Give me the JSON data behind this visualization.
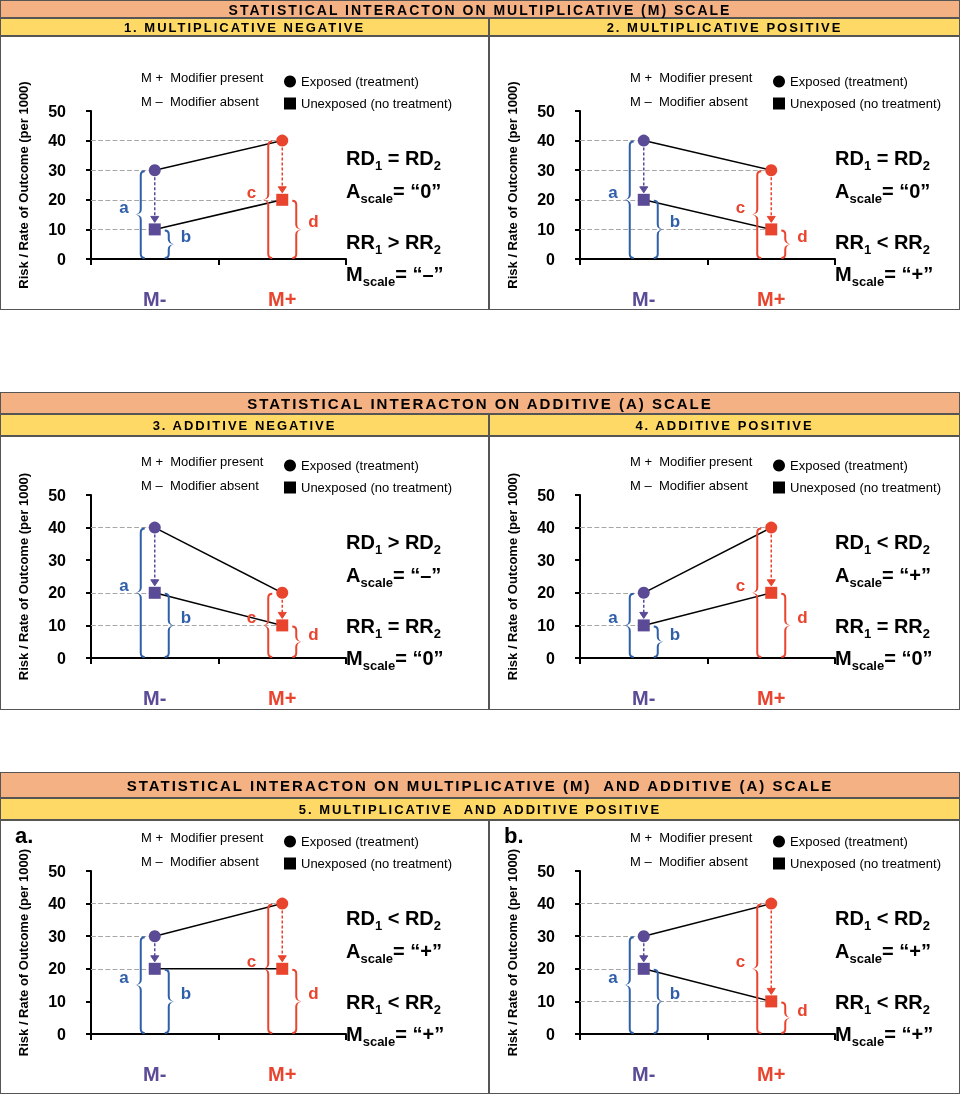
{
  "chart_data": [
    {
      "type": "line",
      "title": "1. MULTIPLICATIVE NEGATIVE",
      "ylabel": "Risk / Rate of Outcome (per 1000)",
      "categories": [
        "M-",
        "M+"
      ],
      "series": [
        {
          "name": "Exposed (treatment)",
          "color": "#000000",
          "colors": [
            "#5b4a96",
            "#e8442e"
          ],
          "marker": "circle",
          "values": [
            30,
            40
          ]
        },
        {
          "name": "Unexposed (no treatment)",
          "color": "#000000",
          "colors": [
            "#5b4a96",
            "#e8442e"
          ],
          "marker": "square",
          "values": [
            10,
            20
          ]
        }
      ],
      "ylim": [
        0,
        50
      ],
      "yticks": [
        0,
        10,
        20,
        30,
        40,
        50
      ],
      "grid": false,
      "legend": "top right",
      "line_style": "solid",
      "ref_lines": [
        {
          "axis": "y",
          "value": 40,
          "color": "#a6a6a6",
          "line_style": "dashed"
        },
        {
          "axis": "y",
          "value": 30,
          "color": "#a6a6a6",
          "line_style": "dashed"
        },
        {
          "axis": "y",
          "value": 20,
          "color": "#a6a6a6",
          "line_style": "dashed"
        },
        {
          "axis": "y",
          "value": 10,
          "color": "#a6a6a6",
          "line_style": "dashed"
        }
      ],
      "annotations": [
        "STATISTICAL INTERACTON ON MULTIPLICATIVE (M) SCALE",
        "M +  Modifier present",
        "M –  Modifier absent",
        "RD$_{1}$ = RD$_{2}$",
        "A$_{scale}$= “0”",
        "RR$_{1}$ > RR$_{2}$",
        "M$_{scale}$= “–”",
        "a",
        "b",
        "c",
        "d"
      ]
    },
    {
      "type": "line",
      "title": "2. MULTIPLICATIVE POSITIVE",
      "ylabel": "Risk / Rate of Outcome (per 1000)",
      "categories": [
        "M-",
        "M+"
      ],
      "series": [
        {
          "name": "Exposed (treatment)",
          "color": "#000000",
          "colors": [
            "#5b4a96",
            "#e8442e"
          ],
          "marker": "circle",
          "values": [
            40,
            30
          ]
        },
        {
          "name": "Unexposed (no treatment)",
          "color": "#000000",
          "colors": [
            "#5b4a96",
            "#e8442e"
          ],
          "marker": "square",
          "values": [
            20,
            10
          ]
        }
      ],
      "ylim": [
        0,
        50
      ],
      "yticks": [
        0,
        10,
        20,
        30,
        40,
        50
      ],
      "grid": false,
      "legend": "top right",
      "line_style": "solid",
      "ref_lines": [
        {
          "axis": "y",
          "value": 40,
          "color": "#a6a6a6",
          "line_style": "dashed"
        },
        {
          "axis": "y",
          "value": 30,
          "color": "#a6a6a6",
          "line_style": "dashed"
        },
        {
          "axis": "y",
          "value": 20,
          "color": "#a6a6a6",
          "line_style": "dashed"
        },
        {
          "axis": "y",
          "value": 10,
          "color": "#a6a6a6",
          "line_style": "dashed"
        }
      ],
      "annotations": [
        "M +  Modifier present",
        "M –  Modifier absent",
        "RD$_{1}$ = RD$_{2}$",
        "A$_{scale}$= “0”",
        "RR$_{1}$ < RR$_{2}$",
        "M$_{scale}$= “+”",
        "a",
        "b",
        "c",
        "d"
      ]
    },
    {
      "type": "line",
      "title": "3. ADDITIVE NEGATIVE",
      "ylabel": "Risk / Rate of Outcome (per 1000)",
      "categories": [
        "M-",
        "M+"
      ],
      "series": [
        {
          "name": "Exposed (treatment)",
          "color": "#000000",
          "colors": [
            "#5b4a96",
            "#e8442e"
          ],
          "marker": "circle",
          "values": [
            40,
            20
          ]
        },
        {
          "name": "Unexposed (no treatment)",
          "color": "#000000",
          "colors": [
            "#5b4a96",
            "#e8442e"
          ],
          "marker": "square",
          "values": [
            20,
            10
          ]
        }
      ],
      "ylim": [
        0,
        50
      ],
      "yticks": [
        0,
        10,
        20,
        30,
        40,
        50
      ],
      "grid": false,
      "legend": "top right",
      "line_style": "solid",
      "ref_lines": [
        {
          "axis": "y",
          "value": 40,
          "color": "#a6a6a6",
          "line_style": "dashed"
        },
        {
          "axis": "y",
          "value": 20,
          "color": "#a6a6a6",
          "line_style": "dashed"
        },
        {
          "axis": "y",
          "value": 10,
          "color": "#a6a6a6",
          "line_style": "dashed"
        }
      ],
      "annotations": [
        "STATISTICAL INTERACTON ON ADDITIVE (A) SCALE",
        "M +  Modifier present",
        "M –  Modifier absent",
        "RD$_{1}$ > RD$_{2}$",
        "A$_{scale}$= “–”",
        "RR$_{1}$ = RR$_{2}$",
        "M$_{scale}$= “0”",
        "a",
        "b",
        "c",
        "d"
      ]
    },
    {
      "type": "line",
      "title": "4. ADDITIVE POSITIVE",
      "ylabel": "Risk / Rate of Outcome (per 1000)",
      "categories": [
        "M-",
        "M+"
      ],
      "series": [
        {
          "name": "Exposed (treatment)",
          "color": "#000000",
          "colors": [
            "#5b4a96",
            "#e8442e"
          ],
          "marker": "circle",
          "values": [
            20,
            40
          ]
        },
        {
          "name": "Unexposed (no treatment)",
          "color": "#000000",
          "colors": [
            "#5b4a96",
            "#e8442e"
          ],
          "marker": "square",
          "values": [
            10,
            20
          ]
        }
      ],
      "ylim": [
        0,
        50
      ],
      "yticks": [
        0,
        10,
        20,
        30,
        40,
        50
      ],
      "grid": false,
      "legend": "top right",
      "line_style": "solid",
      "ref_lines": [
        {
          "axis": "y",
          "value": 40,
          "color": "#a6a6a6",
          "line_style": "dashed"
        },
        {
          "axis": "y",
          "value": 20,
          "color": "#a6a6a6",
          "line_style": "dashed"
        },
        {
          "axis": "y",
          "value": 10,
          "color": "#a6a6a6",
          "line_style": "dashed"
        }
      ],
      "annotations": [
        "M +  Modifier present",
        "M –  Modifier absent",
        "RD$_{1}$ < RD$_{2}$",
        "A$_{scale}$= “+”",
        "RR$_{1}$ = RR$_{2}$",
        "M$_{scale}$= “0”",
        "a",
        "b",
        "c",
        "d"
      ]
    },
    {
      "type": "line",
      "title": "a.",
      "ylabel": "Risk / Rate of Outcome (per 1000)",
      "categories": [
        "M-",
        "M+"
      ],
      "series": [
        {
          "name": "Exposed (treatment)",
          "color": "#000000",
          "colors": [
            "#5b4a96",
            "#e8442e"
          ],
          "marker": "circle",
          "values": [
            30,
            40
          ]
        },
        {
          "name": "Unexposed (no treatment)",
          "color": "#000000",
          "colors": [
            "#5b4a96",
            "#e8442e"
          ],
          "marker": "square",
          "values": [
            20,
            20
          ]
        }
      ],
      "ylim": [
        0,
        50
      ],
      "yticks": [
        0,
        10,
        20,
        30,
        40,
        50
      ],
      "grid": false,
      "legend": "top right",
      "line_style": "solid",
      "ref_lines": [
        {
          "axis": "y",
          "value": 40,
          "color": "#a6a6a6",
          "line_style": "dashed"
        },
        {
          "axis": "y",
          "value": 30,
          "color": "#a6a6a6",
          "line_style": "dashed"
        },
        {
          "axis": "y",
          "value": 20,
          "color": "#a6a6a6",
          "line_style": "dashed"
        }
      ],
      "annotations": [
        "STATISTICAL INTERACTON ON MULTIPLICATIVE (M)  AND ADDITIVE (A) SCALE",
        "5. MULTIPLICATIVE  AND ADDITIVE POSITIVE",
        "M +  Modifier present",
        "M –  Modifier absent",
        "RD$_{1}$ < RD$_{2}$",
        "A$_{scale}$= “+”",
        "RR$_{1}$ < RR$_{2}$",
        "M$_{scale}$= “+”",
        "a",
        "b",
        "c",
        "d"
      ]
    },
    {
      "type": "line",
      "title": "b.",
      "ylabel": "Risk / Rate of Outcome (per 1000)",
      "categories": [
        "M-",
        "M+"
      ],
      "series": [
        {
          "name": "Exposed (treatment)",
          "color": "#000000",
          "colors": [
            "#5b4a96",
            "#e8442e"
          ],
          "marker": "circle",
          "values": [
            30,
            40
          ]
        },
        {
          "name": "Unexposed (no treatment)",
          "color": "#000000",
          "colors": [
            "#5b4a96",
            "#e8442e"
          ],
          "marker": "square",
          "values": [
            20,
            10
          ]
        }
      ],
      "ylim": [
        0,
        50
      ],
      "yticks": [
        0,
        10,
        20,
        30,
        40,
        50
      ],
      "grid": false,
      "legend": "top right",
      "line_style": "solid",
      "ref_lines": [
        {
          "axis": "y",
          "value": 40,
          "color": "#a6a6a6",
          "line_style": "dashed"
        },
        {
          "axis": "y",
          "value": 30,
          "color": "#a6a6a6",
          "line_style": "dashed"
        },
        {
          "axis": "y",
          "value": 20,
          "color": "#a6a6a6",
          "line_style": "dashed"
        },
        {
          "axis": "y",
          "value": 10,
          "color": "#a6a6a6",
          "line_style": "dashed"
        }
      ],
      "annotations": [
        "M +  Modifier present",
        "M –  Modifier absent",
        "RD$_{1}$ < RD$_{2}$",
        "A$_{scale}$= “+”",
        "RR$_{1}$ < RR$_{2}$",
        "M$_{scale}$= “+”",
        "a",
        "b",
        "c",
        "d"
      ]
    }
  ]
}
